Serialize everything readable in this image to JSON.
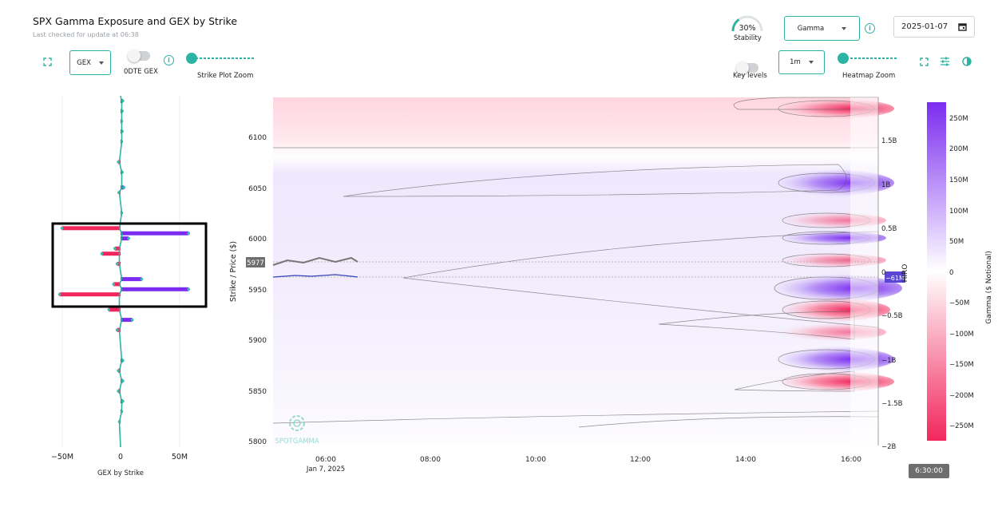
{
  "header": {
    "title": "SPX Gamma Exposure and GEX by Strike",
    "subtitle": "Last checked for update at 06:38"
  },
  "stability": {
    "value_label": "30%",
    "value": 0.3,
    "label": "Stability"
  },
  "metric_dropdown": {
    "selected": "Gamma"
  },
  "date_picker": {
    "value": "2025-01-07"
  },
  "left_toolbar": {
    "gex_dropdown": {
      "selected": "GEX"
    },
    "zero_dte_toggle": {
      "label": "0DTE GEX",
      "on": false
    },
    "strike_zoom": {
      "label": "Strike Plot Zoom",
      "value": 0.0
    }
  },
  "right_toolbar": {
    "key_levels_toggle": {
      "label": "Key levels",
      "on": false
    },
    "interval_dropdown": {
      "selected": "1m"
    },
    "heatmap_zoom": {
      "label": "Heatmap Zoom",
      "value": 0.0
    }
  },
  "gex_chart": {
    "x_ticks": [
      "−50M",
      "0",
      "50M"
    ],
    "xlabel": "GEX by Strike"
  },
  "heatmap": {
    "ylabel": "Strike / Price ($)",
    "y_ticks": [
      "6100",
      "6050",
      "6000",
      "5950",
      "5900",
      "5850",
      "5800"
    ],
    "x_ticks": [
      "06:00",
      "08:00",
      "10:00",
      "12:00",
      "14:00",
      "16:00"
    ],
    "date_label": "Jan 7, 2025",
    "price_label": "5977",
    "hiro_label": "−61M",
    "hiro_axis_label": "HIRO",
    "hiro_ticks": [
      "1.5B",
      "1B",
      "0.5B",
      "0",
      "−0.5B",
      "−1B",
      "−1.5B",
      "−2B"
    ],
    "watermark": "SPOTGAMMA",
    "time_badge": "6:30:00"
  },
  "colorbar": {
    "label": "Gamma ($ Notional)",
    "ticks": [
      "250M",
      "200M",
      "150M",
      "100M",
      "50M",
      "0",
      "−50M",
      "−100M",
      "−150M",
      "−200M",
      "−250M"
    ],
    "colors": {
      "positive": "#7b2cf0",
      "neutral": "#ffffff",
      "negative": "#f2265c"
    }
  },
  "chart_data": {
    "type": "bar",
    "title": "GEX by Strike",
    "xlabel": "GEX by Strike",
    "ylabel": "Strike / Price ($)",
    "xlim": [
      -75,
      75
    ],
    "x_units": "M",
    "bars": [
      {
        "strike": 6135,
        "value": 2
      },
      {
        "strike": 6125,
        "value": 1.5
      },
      {
        "strike": 6115,
        "value": 1
      },
      {
        "strike": 6105,
        "value": 1.5
      },
      {
        "strike": 6095,
        "value": 1
      },
      {
        "strike": 6075,
        "value": -2
      },
      {
        "strike": 6065,
        "value": 1.5
      },
      {
        "strike": 6050,
        "value": 3
      },
      {
        "strike": 6045,
        "value": -1.5
      },
      {
        "strike": 6025,
        "value": 1
      },
      {
        "strike": 6010,
        "value": -50
      },
      {
        "strike": 6005,
        "value": 58
      },
      {
        "strike": 6000,
        "value": 7
      },
      {
        "strike": 5990,
        "value": -5
      },
      {
        "strike": 5985,
        "value": -16
      },
      {
        "strike": 5975,
        "value": -3
      },
      {
        "strike": 5960,
        "value": 18
      },
      {
        "strike": 5955,
        "value": -6
      },
      {
        "strike": 5950,
        "value": 58
      },
      {
        "strike": 5945,
        "value": -52
      },
      {
        "strike": 5930,
        "value": -10
      },
      {
        "strike": 5920,
        "value": 10
      },
      {
        "strike": 5910,
        "value": -3
      },
      {
        "strike": 5880,
        "value": 2
      },
      {
        "strike": 5870,
        "value": -2
      },
      {
        "strike": 5860,
        "value": 2
      },
      {
        "strike": 5850,
        "value": -2
      },
      {
        "strike": 5840,
        "value": 2
      },
      {
        "strike": 5830,
        "value": 1
      },
      {
        "strike": 5820,
        "value": -1
      }
    ]
  }
}
